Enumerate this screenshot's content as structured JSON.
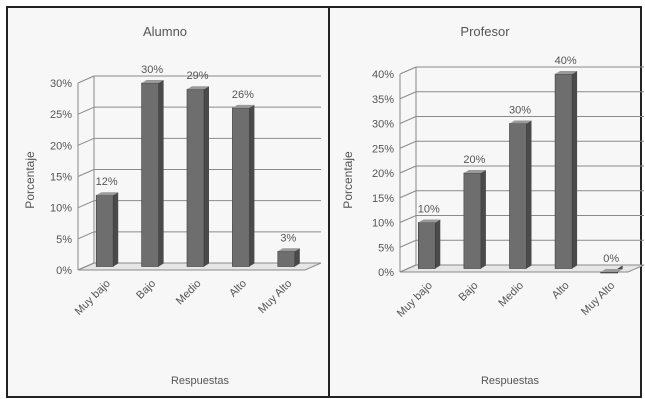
{
  "chart_data": [
    {
      "type": "bar",
      "title": "Alumno",
      "xlabel": "Respuestas",
      "ylabel": "Porcentaje",
      "categories": [
        "Muy bajo",
        "Bajo",
        "Medio",
        "Alto",
        "Muy Alto"
      ],
      "values": [
        12,
        30,
        29,
        26,
        3
      ],
      "data_labels": [
        "12%",
        "30%",
        "29%",
        "26%",
        "3%"
      ],
      "ylim": [
        0,
        30
      ],
      "yticks": [
        "0%",
        "5%",
        "10%",
        "15%",
        "20%",
        "25%",
        "30%"
      ],
      "ytick_values": [
        0,
        5,
        10,
        15,
        20,
        25,
        30
      ],
      "grid": true,
      "bar_color": "#6e6e6e"
    },
    {
      "type": "bar",
      "title": "Profesor",
      "xlabel": "Respuestas",
      "ylabel": "Porcentaje",
      "categories": [
        "Muy bajo",
        "Bajo",
        "Medio",
        "Alto",
        "Muy Alto"
      ],
      "values": [
        10,
        20,
        30,
        40,
        0
      ],
      "data_labels": [
        "10%",
        "20%",
        "30%",
        "40%",
        "0%"
      ],
      "ylim": [
        0,
        40
      ],
      "yticks": [
        "0%",
        "5%",
        "10%",
        "15%",
        "20%",
        "25%",
        "30%",
        "35%",
        "40%"
      ],
      "ytick_values": [
        0,
        5,
        10,
        15,
        20,
        25,
        30,
        35,
        40
      ],
      "grid": true,
      "bar_color": "#6e6e6e"
    }
  ]
}
